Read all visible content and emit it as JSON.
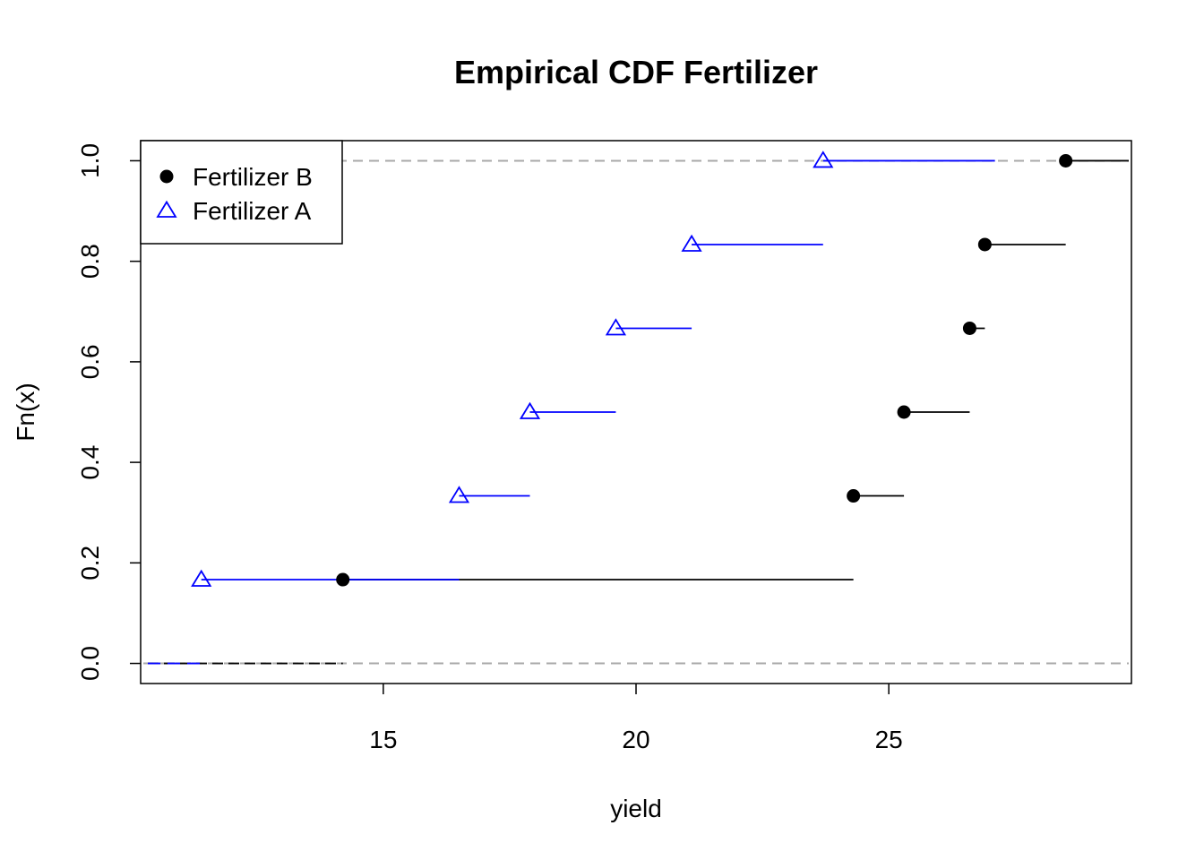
{
  "chart_data": {
    "type": "line",
    "step": true,
    "title": "Empirical CDF Fertilizer",
    "xlabel": "yield",
    "ylabel": "Fn(x)",
    "xlim": [
      10.2,
      29.8
    ],
    "ylim": [
      -0.04,
      1.04
    ],
    "x_ticks": [
      15,
      20,
      25
    ],
    "y_ticks": [
      0.0,
      0.2,
      0.4,
      0.6,
      0.8,
      1.0
    ],
    "y_tick_labels": [
      "0.0",
      "0.2",
      "0.4",
      "0.6",
      "0.8",
      "1.0"
    ],
    "reference_lines": [
      0,
      1
    ],
    "grid": false,
    "legend_position": "top-left",
    "series": [
      {
        "name": "Fertilizer B",
        "marker": "filled-circle",
        "color": "#000000",
        "x": [
          14.2,
          24.3,
          25.3,
          26.6,
          26.9,
          28.5
        ],
        "y": [
          0.1667,
          0.3333,
          0.5,
          0.6667,
          0.8333,
          1.0
        ]
      },
      {
        "name": "Fertilizer A",
        "marker": "open-triangle",
        "color": "#0000ff",
        "x": [
          11.4,
          16.5,
          17.9,
          19.6,
          21.1,
          23.7
        ],
        "y": [
          0.1667,
          0.3333,
          0.5,
          0.6667,
          0.8333,
          1.0
        ]
      }
    ]
  }
}
